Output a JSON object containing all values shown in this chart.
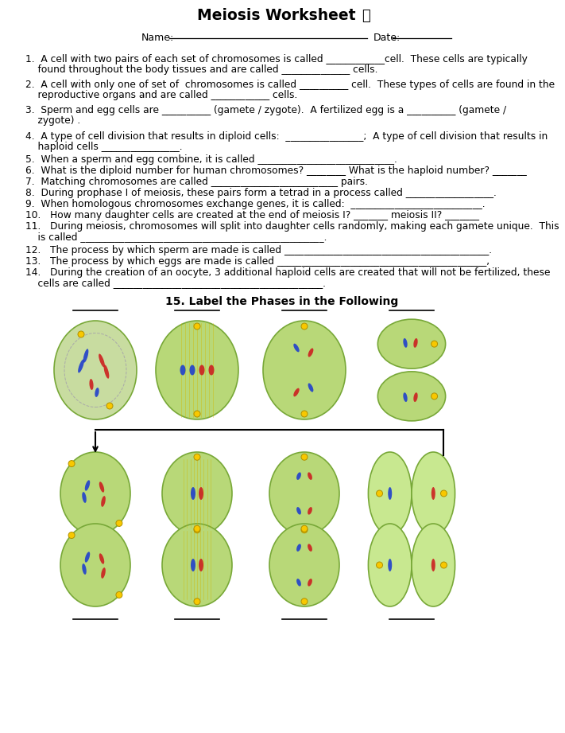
{
  "title": "Meiosis Worksheet",
  "owl_emoji": "🦩",
  "background_color": "#ffffff",
  "text_color": "#000000",
  "label_section": "15. Label the Phases in the Following",
  "fig_width": 7.11,
  "fig_height": 9.21,
  "dpi": 100,
  "q1": "1.  A cell with two pairs of each set of chromosomes is called ____________cell.  These cells are typically",
  "q1b": "    found throughout the body tissues and are called ______________ cells.",
  "q2": "2.  A cell with only one of set of  chromosomes is called __________ cell.  These types of cells are found in the",
  "q2b": "    reproductive organs and are called ____________ cells.",
  "q3": "3.  Sperm and egg cells are __________ (gamete / zygote).  A fertilized egg is a __________ (gamete /",
  "q3b": "    zygote) .",
  "q4": "4.  A type of cell division that results in diploid cells:  ________________;  A type of cell division that results in",
  "q4b": "    haploid cells ________________.",
  "q5": "5.  When a sperm and egg combine, it is called ____________________________.",
  "q6": "6.  What is the diploid number for human chromosomes? ________ What is the haploid number? _______",
  "q7": "7.  Matching chromosomes are called __________________________ pairs.",
  "q8": "8.  During prophase I of meiosis, these pairs form a tetrad in a process called __________________.",
  "q9": "9.  When homologous chromosomes exchange genes, it is called:  ___________________________.",
  "q10": "10.   How many daughter cells are created at the end of meiosis I? _______ meiosis II? _______",
  "q11": "11.   During meiosis, chromosomes will split into daughter cells randomly, making each gamete unique.  This",
  "q11b": "    is called __________________________________________________.",
  "q12": "12.   The process by which sperm are made is called __________________________________________.",
  "q13": "13.   The process by which eggs are made is called ___________________________________________,",
  "q14": "14.   During the creation of an oocyte, 3 additional haploid cells are created that will not be fertilized, these",
  "q14b": "    cells are called ___________________________________________.",
  "cell_green": "#b8d878",
  "cell_border": "#78a838",
  "cell_green2": "#c8e890",
  "yellow_spot": "#f8c800",
  "chrom_red": "#cc2020",
  "chrom_blue": "#2040cc"
}
